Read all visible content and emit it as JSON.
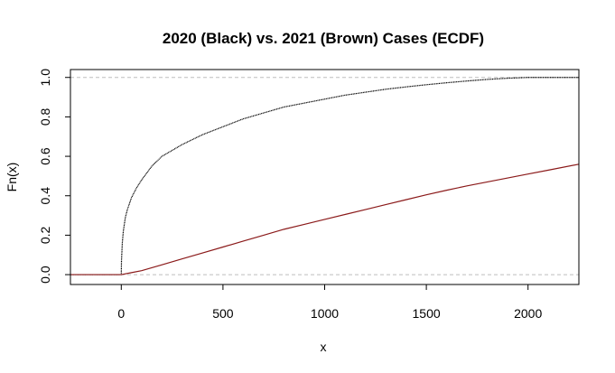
{
  "chart_data": {
    "type": "line",
    "title": "2020 (Black) vs. 2021 (Brown) Cases (ECDF)",
    "xlabel": "x",
    "ylabel": "Fn(x)",
    "xlim": [
      -250,
      2250
    ],
    "ylim": [
      -0.05,
      1.04
    ],
    "xticks": [
      "0",
      "500",
      "1000",
      "1500",
      "2000"
    ],
    "xtick_values": [
      0,
      500,
      1000,
      1500,
      2000
    ],
    "yticks": [
      "0.0",
      "0.2",
      "0.4",
      "0.6",
      "0.8",
      "1.0"
    ],
    "ytick_values": [
      0.0,
      0.2,
      0.4,
      0.6,
      0.8,
      1.0
    ],
    "reference_lines": [
      0,
      1
    ],
    "reference_line_color": "#bebebe",
    "series": [
      {
        "color": "#000000",
        "x": [
          -250,
          0,
          1,
          5,
          10,
          20,
          30,
          50,
          75,
          100,
          150,
          200,
          250,
          300,
          400,
          500,
          600,
          700,
          800,
          900,
          1000,
          1100,
          1200,
          1300,
          1400,
          1500,
          1600,
          1700,
          1800,
          1900,
          2000,
          2250
        ],
        "y": [
          0.0,
          0.0,
          0.07,
          0.16,
          0.22,
          0.29,
          0.33,
          0.39,
          0.44,
          0.48,
          0.55,
          0.6,
          0.63,
          0.66,
          0.71,
          0.75,
          0.79,
          0.82,
          0.85,
          0.87,
          0.89,
          0.91,
          0.925,
          0.94,
          0.952,
          0.963,
          0.973,
          0.982,
          0.99,
          0.996,
          1.0,
          1.0
        ]
      },
      {
        "color": "#8b1a1a",
        "x": [
          -250,
          0,
          50,
          100,
          200,
          300,
          400,
          500,
          600,
          700,
          800,
          900,
          1000,
          1100,
          1200,
          1300,
          1400,
          1500,
          1600,
          1700,
          1800,
          1900,
          2000,
          2100,
          2250
        ],
        "y": [
          0.0,
          0.0,
          0.01,
          0.02,
          0.05,
          0.08,
          0.11,
          0.14,
          0.17,
          0.2,
          0.23,
          0.255,
          0.28,
          0.305,
          0.33,
          0.355,
          0.38,
          0.405,
          0.428,
          0.45,
          0.47,
          0.49,
          0.51,
          0.53,
          0.56
        ]
      }
    ]
  }
}
